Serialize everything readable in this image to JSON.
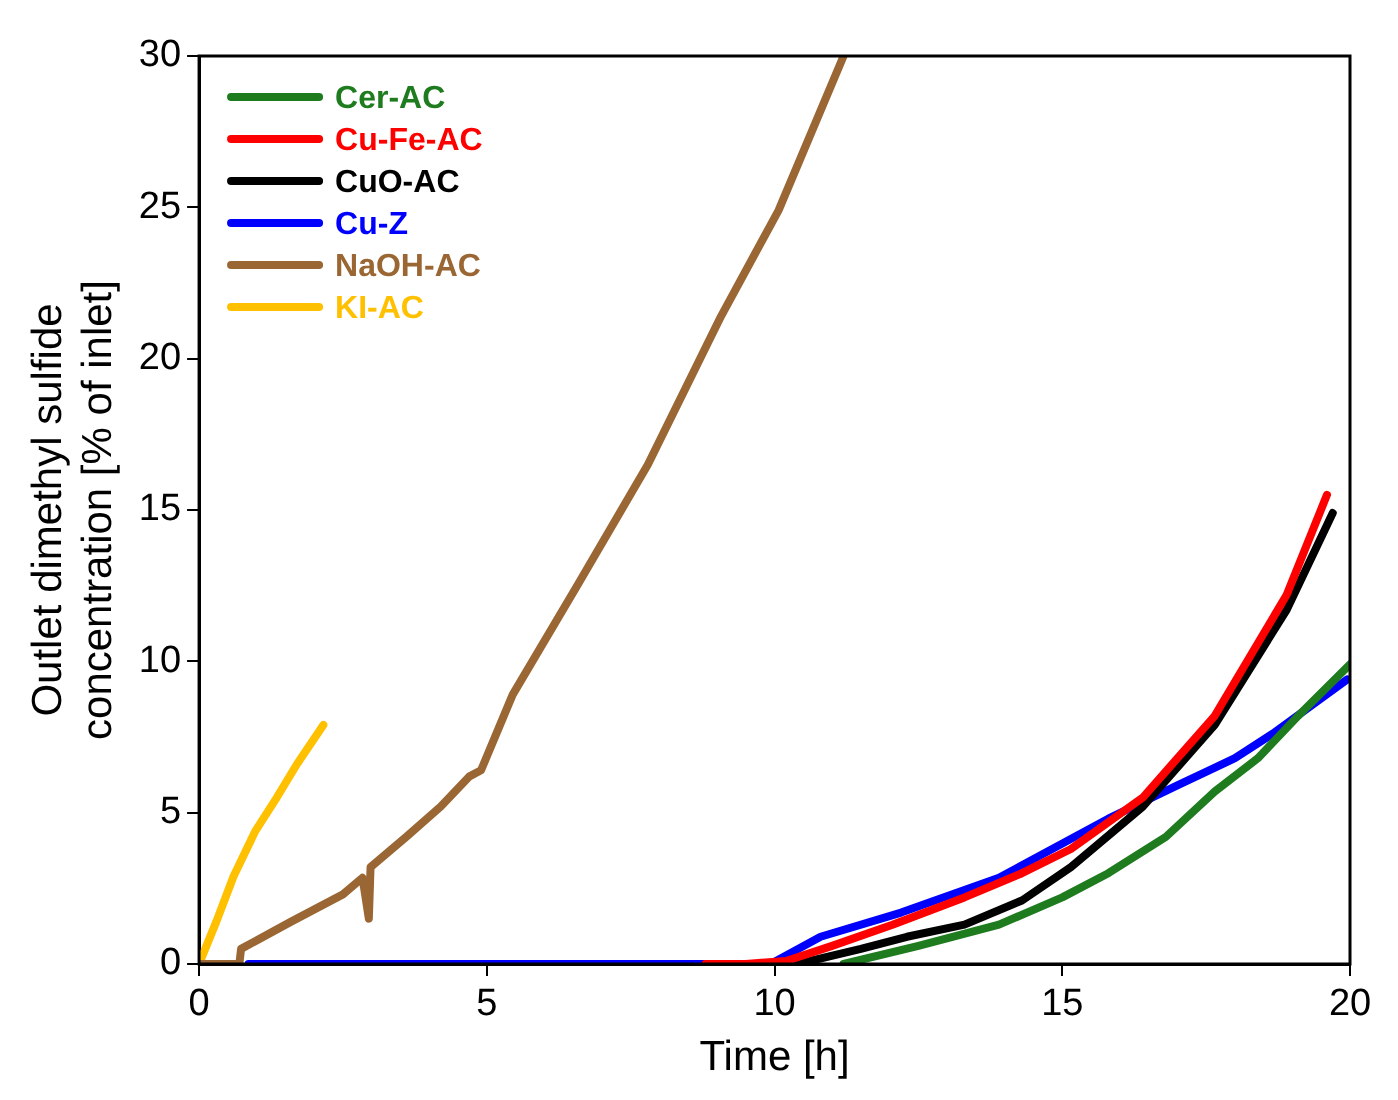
{
  "chart_data": {
    "type": "line",
    "xlabel": "Time [h]",
    "ylabel": "Outlet dimethyl sulfide concentration [% of inlet]",
    "xlim": [
      0,
      20
    ],
    "xticks": [
      0,
      5,
      10,
      15,
      20
    ],
    "ylim": [
      0,
      30
    ],
    "yticks": [
      0,
      5,
      10,
      15,
      20,
      25,
      30
    ],
    "grid": false,
    "legend": "top left",
    "marker": "none",
    "line_style": "solid",
    "series": [
      {
        "name": "Cer-AC",
        "color": "#1e7b1e",
        "x": [
          11.2,
          12.5,
          13.9,
          15.0,
          15.8,
          16.8,
          17.65,
          18.4,
          19.1,
          20
        ],
        "values": [
          0,
          0.6,
          1.3,
          2.2,
          3.0,
          4.2,
          5.7,
          6.8,
          8.2,
          9.9
        ]
      },
      {
        "name": "Cu-Fe-AC",
        "color": "#ff0000",
        "x": [
          8.8,
          9.5,
          10.2,
          11.0,
          12.05,
          13.3,
          14.3,
          15.15,
          16.4,
          17.65,
          18.9,
          19.6
        ],
        "values": [
          0,
          0,
          0.1,
          0.6,
          1.3,
          2.2,
          3.0,
          3.8,
          5.5,
          8.2,
          12.2,
          15.5
        ]
      },
      {
        "name": "CuO-AC",
        "color": "#000000",
        "x": [
          10.4,
          11.5,
          12.3,
          13.3,
          14.3,
          15.15,
          16.4,
          17.65,
          18.9,
          19.7
        ],
        "values": [
          0,
          0.5,
          0.9,
          1.3,
          2.1,
          3.2,
          5.2,
          7.9,
          11.7,
          14.9
        ]
      },
      {
        "name": "Cu-Z",
        "color": "#0000ff",
        "x": [
          0.86,
          9.93,
          10.8,
          12.2,
          13.9,
          15.8,
          17.0,
          18.0,
          18.65,
          19.95
        ],
        "values": [
          0,
          0,
          0.9,
          1.7,
          2.85,
          4.8,
          5.9,
          6.8,
          7.6,
          9.4
        ]
      },
      {
        "name": "NaOH-AC",
        "color": "#9a6633",
        "x": [
          0,
          0.7,
          0.73,
          1.6,
          2.5,
          2.84,
          2.95,
          2.98,
          3.6,
          4.2,
          4.7,
          4.9,
          5.45,
          6.57,
          7.8,
          9.07,
          10.07,
          11.2
        ],
        "values": [
          0,
          0,
          0.5,
          1.4,
          2.3,
          2.85,
          1.5,
          3.2,
          4.2,
          5.2,
          6.2,
          6.4,
          8.9,
          12.5,
          16.5,
          21.4,
          24.9,
          30
        ]
      },
      {
        "name": "KI-AC",
        "color": "#ffc000",
        "x": [
          0,
          0.3,
          0.6,
          0.98,
          1.35,
          1.7,
          2.16
        ],
        "values": [
          0,
          1.4,
          2.9,
          4.4,
          5.5,
          6.6,
          7.9
        ]
      }
    ]
  }
}
